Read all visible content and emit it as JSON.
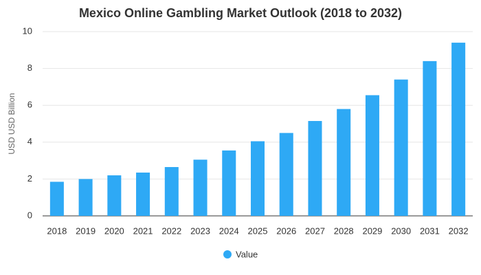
{
  "chart_data": {
    "type": "bar",
    "title": "Mexico Online Gambling Market Outlook (2018 to 2032)",
    "y_label": "USD USD Billion",
    "categories": [
      "2018",
      "2019",
      "2020",
      "2021",
      "2022",
      "2023",
      "2024",
      "2025",
      "2026",
      "2027",
      "2028",
      "2029",
      "2030",
      "2031",
      "2032"
    ],
    "series": [
      {
        "name": "Value",
        "color": "#2ea9f5",
        "values": [
          1.85,
          2.0,
          2.2,
          2.35,
          2.65,
          3.05,
          3.55,
          4.05,
          4.5,
          5.15,
          5.8,
          6.55,
          7.4,
          8.4,
          9.4
        ]
      }
    ],
    "ylim": [
      0,
      10
    ],
    "yticks": [
      0,
      2,
      4,
      6,
      8,
      10
    ],
    "grid": true,
    "legend": "bottom"
  }
}
